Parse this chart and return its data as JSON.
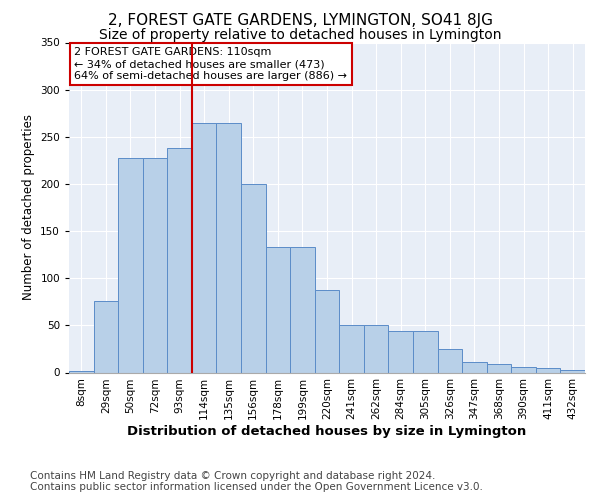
{
  "title": "2, FOREST GATE GARDENS, LYMINGTON, SO41 8JG",
  "subtitle": "Size of property relative to detached houses in Lymington",
  "xlabel": "Distribution of detached houses by size in Lymington",
  "ylabel": "Number of detached properties",
  "categories": [
    "8sqm",
    "29sqm",
    "50sqm",
    "72sqm",
    "93sqm",
    "114sqm",
    "135sqm",
    "156sqm",
    "178sqm",
    "199sqm",
    "220sqm",
    "241sqm",
    "262sqm",
    "284sqm",
    "305sqm",
    "326sqm",
    "347sqm",
    "368sqm",
    "390sqm",
    "411sqm",
    "432sqm"
  ],
  "values": [
    2,
    76,
    228,
    228,
    238,
    265,
    265,
    200,
    133,
    133,
    88,
    50,
    50,
    44,
    44,
    25,
    11,
    9,
    6,
    5,
    3
  ],
  "bar_color": "#b8d0e8",
  "bar_edge_color": "#5b8cc8",
  "vline_x_index": 5,
  "vline_color": "#cc0000",
  "annotation_text": "2 FOREST GATE GARDENS: 110sqm\n← 34% of detached houses are smaller (473)\n64% of semi-detached houses are larger (886) →",
  "annotation_box_color": "#ffffff",
  "annotation_box_edge": "#cc0000",
  "ylim": [
    0,
    350
  ],
  "yticks": [
    0,
    50,
    100,
    150,
    200,
    250,
    300,
    350
  ],
  "background_color": "#e8eef7",
  "footer_line1": "Contains HM Land Registry data © Crown copyright and database right 2024.",
  "footer_line2": "Contains public sector information licensed under the Open Government Licence v3.0.",
  "title_fontsize": 11,
  "subtitle_fontsize": 10,
  "xlabel_fontsize": 9.5,
  "ylabel_fontsize": 8.5,
  "tick_fontsize": 7.5,
  "footer_fontsize": 7.5
}
